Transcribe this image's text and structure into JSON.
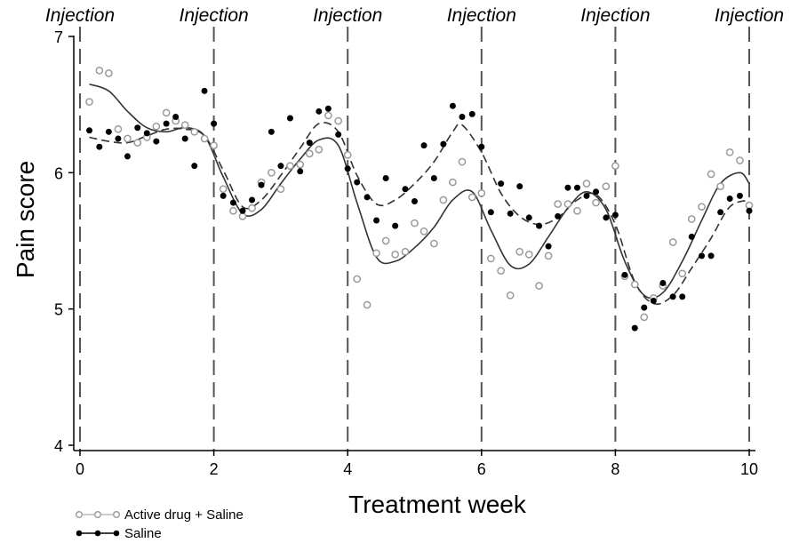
{
  "chart_data": {
    "type": "scatter",
    "title": "",
    "xlabel": "Treatment week",
    "ylabel": "Pain score",
    "xlim": [
      0,
      10
    ],
    "ylim": [
      4,
      7
    ],
    "x_ticks": [
      0,
      2,
      4,
      6,
      8,
      10
    ],
    "y_ticks": [
      4,
      5,
      6,
      7
    ],
    "grid": false,
    "legend_position": "bottom-left",
    "annotations": {
      "injection_label": "Injection",
      "injection_weeks": [
        0,
        2,
        4,
        6,
        8,
        10
      ]
    },
    "series": [
      {
        "name": "Active drug + Saline",
        "marker": "open-circle",
        "line_style": "solid",
        "color": "#9a9a9a",
        "points": [
          [
            0.14,
            6.52
          ],
          [
            0.29,
            6.75
          ],
          [
            0.43,
            6.73
          ],
          [
            0.57,
            6.32
          ],
          [
            0.71,
            6.25
          ],
          [
            0.86,
            6.22
          ],
          [
            1.0,
            6.26
          ],
          [
            1.14,
            6.34
          ],
          [
            1.29,
            6.44
          ],
          [
            1.43,
            6.38
          ],
          [
            1.57,
            6.35
          ],
          [
            1.71,
            6.3
          ],
          [
            1.86,
            6.25
          ],
          [
            2.0,
            6.2
          ],
          [
            2.14,
            5.88
          ],
          [
            2.29,
            5.72
          ],
          [
            2.43,
            5.68
          ],
          [
            2.57,
            5.74
          ],
          [
            2.71,
            5.93
          ],
          [
            2.86,
            6.0
          ],
          [
            3.0,
            5.88
          ],
          [
            3.14,
            6.05
          ],
          [
            3.29,
            6.06
          ],
          [
            3.43,
            6.14
          ],
          [
            3.57,
            6.17
          ],
          [
            3.71,
            6.42
          ],
          [
            3.86,
            6.38
          ],
          [
            4.0,
            6.13
          ],
          [
            4.14,
            5.22
          ],
          [
            4.29,
            5.03
          ],
          [
            4.43,
            5.41
          ],
          [
            4.57,
            5.5
          ],
          [
            4.71,
            5.4
          ],
          [
            4.86,
            5.42
          ],
          [
            5.0,
            5.63
          ],
          [
            5.14,
            5.57
          ],
          [
            5.29,
            5.48
          ],
          [
            5.43,
            5.8
          ],
          [
            5.57,
            5.93
          ],
          [
            5.71,
            6.08
          ],
          [
            5.86,
            5.82
          ],
          [
            6.0,
            5.85
          ],
          [
            6.14,
            5.37
          ],
          [
            6.29,
            5.28
          ],
          [
            6.43,
            5.1
          ],
          [
            6.57,
            5.42
          ],
          [
            6.71,
            5.4
          ],
          [
            6.86,
            5.17
          ],
          [
            7.0,
            5.39
          ],
          [
            7.14,
            5.77
          ],
          [
            7.29,
            5.77
          ],
          [
            7.43,
            5.72
          ],
          [
            7.57,
            5.92
          ],
          [
            7.71,
            5.78
          ],
          [
            7.86,
            5.9
          ],
          [
            8.0,
            6.05
          ],
          [
            8.14,
            5.24
          ],
          [
            8.29,
            5.18
          ],
          [
            8.43,
            4.94
          ],
          [
            8.57,
            5.08
          ],
          [
            8.71,
            5.17
          ],
          [
            8.86,
            5.49
          ],
          [
            9.0,
            5.26
          ],
          [
            9.14,
            5.66
          ],
          [
            9.29,
            5.75
          ],
          [
            9.43,
            5.99
          ],
          [
            9.57,
            5.9
          ],
          [
            9.71,
            6.15
          ],
          [
            9.86,
            6.09
          ],
          [
            10.0,
            5.76
          ]
        ],
        "fit": [
          [
            0.14,
            6.65
          ],
          [
            0.43,
            6.6
          ],
          [
            0.71,
            6.45
          ],
          [
            1.0,
            6.33
          ],
          [
            1.29,
            6.3
          ],
          [
            1.57,
            6.33
          ],
          [
            1.86,
            6.27
          ],
          [
            2.14,
            5.97
          ],
          [
            2.43,
            5.7
          ],
          [
            2.71,
            5.73
          ],
          [
            3.0,
            5.92
          ],
          [
            3.29,
            6.1
          ],
          [
            3.57,
            6.24
          ],
          [
            3.86,
            6.2
          ],
          [
            4.14,
            5.78
          ],
          [
            4.43,
            5.38
          ],
          [
            4.71,
            5.35
          ],
          [
            5.0,
            5.45
          ],
          [
            5.29,
            5.6
          ],
          [
            5.57,
            5.8
          ],
          [
            5.86,
            5.86
          ],
          [
            6.14,
            5.58
          ],
          [
            6.43,
            5.32
          ],
          [
            6.71,
            5.33
          ],
          [
            7.0,
            5.53
          ],
          [
            7.29,
            5.74
          ],
          [
            7.57,
            5.86
          ],
          [
            7.86,
            5.73
          ],
          [
            8.14,
            5.35
          ],
          [
            8.43,
            5.1
          ],
          [
            8.71,
            5.12
          ],
          [
            9.0,
            5.35
          ],
          [
            9.29,
            5.65
          ],
          [
            9.57,
            5.92
          ],
          [
            9.86,
            6.0
          ],
          [
            10.0,
            5.92
          ]
        ]
      },
      {
        "name": "Saline",
        "marker": "filled-circle",
        "line_style": "dashed",
        "color": "#000000",
        "points": [
          [
            0.14,
            6.31
          ],
          [
            0.29,
            6.19
          ],
          [
            0.43,
            6.3
          ],
          [
            0.57,
            6.25
          ],
          [
            0.71,
            6.12
          ],
          [
            0.86,
            6.33
          ],
          [
            1.0,
            6.29
          ],
          [
            1.14,
            6.23
          ],
          [
            1.29,
            6.36
          ],
          [
            1.43,
            6.41
          ],
          [
            1.57,
            6.25
          ],
          [
            1.71,
            6.05
          ],
          [
            1.86,
            6.6
          ],
          [
            2.0,
            6.36
          ],
          [
            2.14,
            5.83
          ],
          [
            2.29,
            5.78
          ],
          [
            2.43,
            5.72
          ],
          [
            2.57,
            5.8
          ],
          [
            2.71,
            5.91
          ],
          [
            2.86,
            6.3
          ],
          [
            3.0,
            6.05
          ],
          [
            3.14,
            6.4
          ],
          [
            3.29,
            6.01
          ],
          [
            3.43,
            6.22
          ],
          [
            3.57,
            6.45
          ],
          [
            3.71,
            6.47
          ],
          [
            3.86,
            6.28
          ],
          [
            4.0,
            6.03
          ],
          [
            4.14,
            5.93
          ],
          [
            4.29,
            5.82
          ],
          [
            4.43,
            5.65
          ],
          [
            4.57,
            5.96
          ],
          [
            4.71,
            5.61
          ],
          [
            4.86,
            5.88
          ],
          [
            5.0,
            5.79
          ],
          [
            5.14,
            6.2
          ],
          [
            5.29,
            5.96
          ],
          [
            5.43,
            6.21
          ],
          [
            5.57,
            6.49
          ],
          [
            5.71,
            6.41
          ],
          [
            5.86,
            6.43
          ],
          [
            6.0,
            6.19
          ],
          [
            6.14,
            5.71
          ],
          [
            6.29,
            5.92
          ],
          [
            6.43,
            5.7
          ],
          [
            6.57,
            5.9
          ],
          [
            6.71,
            5.67
          ],
          [
            6.86,
            5.61
          ],
          [
            7.0,
            5.46
          ],
          [
            7.14,
            5.68
          ],
          [
            7.29,
            5.89
          ],
          [
            7.43,
            5.89
          ],
          [
            7.57,
            5.83
          ],
          [
            7.71,
            5.86
          ],
          [
            7.86,
            5.67
          ],
          [
            8.0,
            5.69
          ],
          [
            8.14,
            5.25
          ],
          [
            8.29,
            4.86
          ],
          [
            8.43,
            5.01
          ],
          [
            8.57,
            5.06
          ],
          [
            8.71,
            5.19
          ],
          [
            8.86,
            5.09
          ],
          [
            9.0,
            5.09
          ],
          [
            9.14,
            5.53
          ],
          [
            9.29,
            5.39
          ],
          [
            9.43,
            5.39
          ],
          [
            9.57,
            5.71
          ],
          [
            9.71,
            5.81
          ],
          [
            9.86,
            5.83
          ],
          [
            10.0,
            5.72
          ]
        ],
        "fit": [
          [
            0.14,
            6.26
          ],
          [
            0.43,
            6.23
          ],
          [
            0.71,
            6.22
          ],
          [
            1.0,
            6.27
          ],
          [
            1.29,
            6.32
          ],
          [
            1.57,
            6.32
          ],
          [
            1.86,
            6.27
          ],
          [
            2.14,
            6.02
          ],
          [
            2.43,
            5.75
          ],
          [
            2.71,
            5.8
          ],
          [
            3.0,
            5.98
          ],
          [
            3.29,
            6.18
          ],
          [
            3.57,
            6.36
          ],
          [
            3.86,
            6.3
          ],
          [
            4.14,
            5.98
          ],
          [
            4.43,
            5.77
          ],
          [
            4.71,
            5.8
          ],
          [
            5.0,
            5.92
          ],
          [
            5.29,
            6.08
          ],
          [
            5.57,
            6.3
          ],
          [
            5.71,
            6.35
          ],
          [
            6.0,
            6.15
          ],
          [
            6.29,
            5.85
          ],
          [
            6.57,
            5.68
          ],
          [
            6.86,
            5.62
          ],
          [
            7.14,
            5.67
          ],
          [
            7.43,
            5.8
          ],
          [
            7.71,
            5.84
          ],
          [
            8.0,
            5.62
          ],
          [
            8.29,
            5.2
          ],
          [
            8.57,
            5.04
          ],
          [
            8.86,
            5.1
          ],
          [
            9.14,
            5.3
          ],
          [
            9.43,
            5.52
          ],
          [
            9.71,
            5.75
          ],
          [
            10.0,
            5.8
          ]
        ]
      }
    ]
  }
}
